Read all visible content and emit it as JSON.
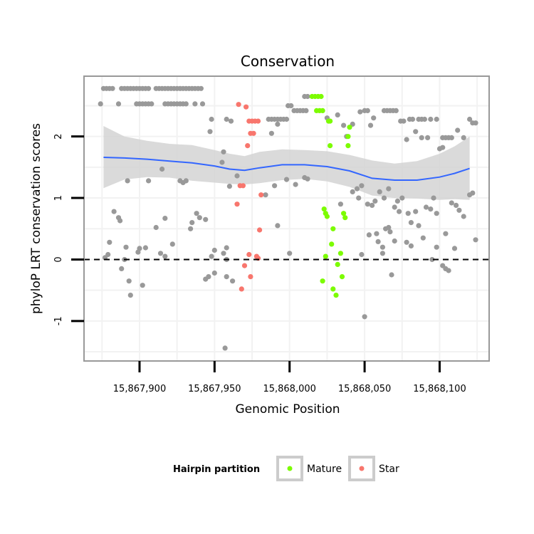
{
  "chart_data": {
    "type": "scatter",
    "title": "Conservation",
    "xlabel": "Genomic Position",
    "ylabel": "phyloP LRT conservation scores",
    "xlim": [
      15867863,
      15868133
    ],
    "ylim": [
      -1.65,
      2.98
    ],
    "x_ticks": [
      15867900,
      15867950,
      15868000,
      15868050,
      15868100
    ],
    "x_tick_labels": [
      "15,867,900",
      "15,867,950",
      "15,868,000",
      "15,868,050",
      "15,868,100"
    ],
    "y_ticks": [
      -1,
      0,
      1,
      2
    ],
    "y_tick_labels": [
      "-1",
      "0",
      "1",
      "2"
    ],
    "reference_line_y": 0,
    "legend": {
      "title": "Hairpin partition",
      "placement": "bottom",
      "entries": [
        {
          "label": "Mature",
          "color": "#7cfc00"
        },
        {
          "label": "Star",
          "color": "#f8766d"
        }
      ]
    },
    "colors": {
      "other": "#999999",
      "Mature": "#7cfc00",
      "Star": "#f8766d",
      "smooth": "#3366ff",
      "ribbon": "#d3d3d3",
      "panel_border": "#999999",
      "grid": "#f2f2f2"
    },
    "smooth": {
      "x": [
        15867876,
        15867890,
        15867905,
        15867920,
        15867935,
        15867950,
        15867960,
        15867970,
        15867980,
        15867995,
        15868010,
        15868025,
        15868040,
        15868055,
        15868070,
        15868085,
        15868100,
        15868110,
        15868120
      ],
      "y": [
        1.66,
        1.65,
        1.63,
        1.6,
        1.57,
        1.52,
        1.47,
        1.45,
        1.49,
        1.54,
        1.54,
        1.51,
        1.44,
        1.32,
        1.29,
        1.29,
        1.34,
        1.4,
        1.48
      ],
      "upper": [
        2.17,
        2.0,
        1.93,
        1.88,
        1.86,
        1.78,
        1.72,
        1.68,
        1.75,
        1.79,
        1.78,
        1.76,
        1.7,
        1.61,
        1.56,
        1.6,
        1.72,
        1.84,
        2.0
      ],
      "lower": [
        1.16,
        1.3,
        1.34,
        1.33,
        1.28,
        1.25,
        1.23,
        1.22,
        1.24,
        1.29,
        1.31,
        1.27,
        1.18,
        1.04,
        1.0,
        0.99,
        0.97,
        0.98,
        0.97
      ]
    },
    "series": [
      {
        "name": "Other",
        "points": [
          [
            15867876,
            2.78
          ],
          [
            15867878,
            2.78
          ],
          [
            15867880,
            2.78
          ],
          [
            15867882,
            2.78
          ],
          [
            15867888,
            2.78
          ],
          [
            15867890,
            2.78
          ],
          [
            15867892,
            2.78
          ],
          [
            15867894,
            2.78
          ],
          [
            15867896,
            2.78
          ],
          [
            15867898,
            2.78
          ],
          [
            15867900,
            2.78
          ],
          [
            15867902,
            2.78
          ],
          [
            15867904,
            2.78
          ],
          [
            15867906,
            2.78
          ],
          [
            15867911,
            2.78
          ],
          [
            15867913,
            2.78
          ],
          [
            15867915,
            2.78
          ],
          [
            15867917,
            2.78
          ],
          [
            15867919,
            2.78
          ],
          [
            15867921,
            2.78
          ],
          [
            15867923,
            2.78
          ],
          [
            15867925,
            2.78
          ],
          [
            15867927,
            2.78
          ],
          [
            15867929,
            2.78
          ],
          [
            15867931,
            2.78
          ],
          [
            15867933,
            2.78
          ],
          [
            15867935,
            2.78
          ],
          [
            15867937,
            2.78
          ],
          [
            15867939,
            2.78
          ],
          [
            15867941,
            2.78
          ],
          [
            15867874,
            2.53
          ],
          [
            15867886,
            2.53
          ],
          [
            15867898,
            2.53
          ],
          [
            15867900,
            2.53
          ],
          [
            15867902,
            2.53
          ],
          [
            15867904,
            2.53
          ],
          [
            15867906,
            2.53
          ],
          [
            15867908,
            2.53
          ],
          [
            15867917,
            2.53
          ],
          [
            15867919,
            2.53
          ],
          [
            15867921,
            2.53
          ],
          [
            15867923,
            2.53
          ],
          [
            15867925,
            2.53
          ],
          [
            15867927,
            2.53
          ],
          [
            15867929,
            2.53
          ],
          [
            15867931,
            2.53
          ],
          [
            15867937,
            2.53
          ],
          [
            15867942,
            2.53
          ],
          [
            15867999,
            2.5
          ],
          [
            15868001,
            2.5
          ],
          [
            15868003,
            2.42
          ],
          [
            15868005,
            2.42
          ],
          [
            15868007,
            2.42
          ],
          [
            15868009,
            2.42
          ],
          [
            15868011,
            2.42
          ],
          [
            15868010,
            2.65
          ],
          [
            15868012,
            2.65
          ],
          [
            15867948,
            2.28
          ],
          [
            15867958,
            2.28
          ],
          [
            15867986,
            2.28
          ],
          [
            15867988,
            2.28
          ],
          [
            15867990,
            2.28
          ],
          [
            15867992,
            2.28
          ],
          [
            15867994,
            2.28
          ],
          [
            15867996,
            2.28
          ],
          [
            15867998,
            2.28
          ],
          [
            15867947,
            2.08
          ],
          [
            15867961,
            2.25
          ],
          [
            15867988,
            2.05
          ],
          [
            15867992,
            2.2
          ],
          [
            15868025,
            2.3
          ],
          [
            15868032,
            2.35
          ],
          [
            15868036,
            2.18
          ],
          [
            15868038,
            2.0
          ],
          [
            15868042,
            2.2
          ],
          [
            15868047,
            2.4
          ],
          [
            15868050,
            2.42
          ],
          [
            15868052,
            2.42
          ],
          [
            15868054,
            2.18
          ],
          [
            15868056,
            2.3
          ],
          [
            15868063,
            2.42
          ],
          [
            15868065,
            2.42
          ],
          [
            15868067,
            2.42
          ],
          [
            15868069,
            2.42
          ],
          [
            15868071,
            2.42
          ],
          [
            15868074,
            2.25
          ],
          [
            15868076,
            2.25
          ],
          [
            15868080,
            2.28
          ],
          [
            15868082,
            2.28
          ],
          [
            15868086,
            2.28
          ],
          [
            15868088,
            2.28
          ],
          [
            15868090,
            2.28
          ],
          [
            15868094,
            2.28
          ],
          [
            15868098,
            2.28
          ],
          [
            15868078,
            1.95
          ],
          [
            15868084,
            2.08
          ],
          [
            15868088,
            1.98
          ],
          [
            15868092,
            1.98
          ],
          [
            15868102,
            1.98
          ],
          [
            15868104,
            1.98
          ],
          [
            15868106,
            1.98
          ],
          [
            15868108,
            1.98
          ],
          [
            15868112,
            2.1
          ],
          [
            15868116,
            1.98
          ],
          [
            15868100,
            1.8
          ],
          [
            15868102,
            1.82
          ],
          [
            15868120,
            2.28
          ],
          [
            15868122,
            2.22
          ],
          [
            15868124,
            2.22
          ],
          [
            15867956,
            1.75
          ],
          [
            15867955,
            1.58
          ],
          [
            15867960,
            1.19
          ],
          [
            15867965,
            1.36
          ],
          [
            15867892,
            1.28
          ],
          [
            15867906,
            1.28
          ],
          [
            15867915,
            1.47
          ],
          [
            15867927,
            1.28
          ],
          [
            15867929,
            1.25
          ],
          [
            15867931,
            1.28
          ],
          [
            15867938,
            0.75
          ],
          [
            15867940,
            0.68
          ],
          [
            15867944,
            0.65
          ],
          [
            15867935,
            0.6
          ],
          [
            15867934,
            0.5
          ],
          [
            15867883,
            0.78
          ],
          [
            15867886,
            0.68
          ],
          [
            15867887,
            0.63
          ],
          [
            15867880,
            0.28
          ],
          [
            15867911,
            0.52
          ],
          [
            15867917,
            0.67
          ],
          [
            15867922,
            0.25
          ],
          [
            15867891,
            0.2
          ],
          [
            15867900,
            0.18
          ],
          [
            15867899,
            0.12
          ],
          [
            15867904,
            0.19
          ],
          [
            15867914,
            0.1
          ],
          [
            15867917,
            0.05
          ],
          [
            15867879,
            0.08
          ],
          [
            15867877,
            0.03
          ],
          [
            15867890,
            -0.0
          ],
          [
            15867888,
            -0.15
          ],
          [
            15867893,
            -0.35
          ],
          [
            15867894,
            -0.58
          ],
          [
            15867902,
            -0.42
          ],
          [
            15867958,
            0.19
          ],
          [
            15867956,
            0.1
          ],
          [
            15867950,
            0.15
          ],
          [
            15867948,
            0.05
          ],
          [
            15867946,
            -0.28
          ],
          [
            15867944,
            -0.32
          ],
          [
            15867950,
            -0.22
          ],
          [
            15867958,
            -0.28
          ],
          [
            15867962,
            -0.35
          ],
          [
            15867958,
            0.0
          ],
          [
            15867957,
            -1.44
          ],
          [
            15867984,
            1.05
          ],
          [
            15867990,
            1.2
          ],
          [
            15867992,
            0.55
          ],
          [
            15868000,
            0.1
          ],
          [
            15867998,
            1.3
          ],
          [
            15868010,
            1.33
          ],
          [
            15868012,
            1.31
          ],
          [
            15868004,
            1.22
          ],
          [
            15868034,
            0.9
          ],
          [
            15868042,
            1.1
          ],
          [
            15868045,
            1.15
          ],
          [
            15868048,
            1.2
          ],
          [
            15868046,
            1.0
          ],
          [
            15868048,
            0.08
          ],
          [
            15868050,
            -0.93
          ],
          [
            15868053,
            0.4
          ],
          [
            15868058,
            0.42
          ],
          [
            15868059,
            0.29
          ],
          [
            15868062,
            0.2
          ],
          [
            15868064,
            0.5
          ],
          [
            15868066,
            0.52
          ],
          [
            15868067,
            0.45
          ],
          [
            15868062,
            0.1
          ],
          [
            15868052,
            0.9
          ],
          [
            15868055,
            0.88
          ],
          [
            15868057,
            0.95
          ],
          [
            15868060,
            1.1
          ],
          [
            15868063,
            1.0
          ],
          [
            15868066,
            1.15
          ],
          [
            15868070,
            0.85
          ],
          [
            15868072,
            0.95
          ],
          [
            15868075,
            1.0
          ],
          [
            15868073,
            0.78
          ],
          [
            15868079,
            0.75
          ],
          [
            15868081,
            0.6
          ],
          [
            15868084,
            0.78
          ],
          [
            15868086,
            0.55
          ],
          [
            15868091,
            0.85
          ],
          [
            15868094,
            0.82
          ],
          [
            15868096,
            1.0
          ],
          [
            15868098,
            0.75
          ],
          [
            15868108,
            0.92
          ],
          [
            15868111,
            0.88
          ],
          [
            15868113,
            0.8
          ],
          [
            15868116,
            0.7
          ],
          [
            15868120,
            1.05
          ],
          [
            15868122,
            1.08
          ],
          [
            15868070,
            0.3
          ],
          [
            15868078,
            0.28
          ],
          [
            15868081,
            0.22
          ],
          [
            15868089,
            0.35
          ],
          [
            15868095,
            0.0
          ],
          [
            15868102,
            -0.1
          ],
          [
            15868104,
            0.42
          ],
          [
            15868098,
            0.2
          ],
          [
            15868106,
            -0.18
          ],
          [
            15868110,
            0.18
          ],
          [
            15868124,
            0.32
          ],
          [
            15868068,
            -0.25
          ],
          [
            15868104,
            -0.15
          ]
        ]
      },
      {
        "name": "Mature",
        "points": [
          [
            15868015,
            2.65
          ],
          [
            15868017,
            2.65
          ],
          [
            15868019,
            2.65
          ],
          [
            15868021,
            2.65
          ],
          [
            15868018,
            2.42
          ],
          [
            15868020,
            2.42
          ],
          [
            15868022,
            2.42
          ],
          [
            15868026,
            2.25
          ],
          [
            15868027,
            2.25
          ],
          [
            15868027,
            1.85
          ],
          [
            15868039,
            1.85
          ],
          [
            15868040,
            2.15
          ],
          [
            15868039,
            2.0
          ],
          [
            15868023,
            0.82
          ],
          [
            15868024,
            0.75
          ],
          [
            15868025,
            0.7
          ],
          [
            15868029,
            0.5
          ],
          [
            15868036,
            0.75
          ],
          [
            15868037,
            0.68
          ],
          [
            15868028,
            0.25
          ],
          [
            15868024,
            0.05
          ],
          [
            15868034,
            0.1
          ],
          [
            15868032,
            -0.08
          ],
          [
            15868022,
            -0.35
          ],
          [
            15868029,
            -0.48
          ],
          [
            15868031,
            -0.58
          ],
          [
            15868035,
            -0.28
          ]
        ]
      },
      {
        "name": "Star",
        "points": [
          [
            15867966,
            2.52
          ],
          [
            15867971,
            2.48
          ],
          [
            15867973,
            2.25
          ],
          [
            15867975,
            2.25
          ],
          [
            15867977,
            2.25
          ],
          [
            15867979,
            2.25
          ],
          [
            15867974,
            2.05
          ],
          [
            15867976,
            2.05
          ],
          [
            15867972,
            1.85
          ],
          [
            15867967,
            1.2
          ],
          [
            15867969,
            1.2
          ],
          [
            15867965,
            0.9
          ],
          [
            15867981,
            1.05
          ],
          [
            15867980,
            0.48
          ],
          [
            15867973,
            0.08
          ],
          [
            15867978,
            0.05
          ],
          [
            15867979,
            0.02
          ],
          [
            15867970,
            -0.1
          ],
          [
            15867974,
            -0.28
          ],
          [
            15867968,
            -0.48
          ]
        ]
      }
    ]
  }
}
